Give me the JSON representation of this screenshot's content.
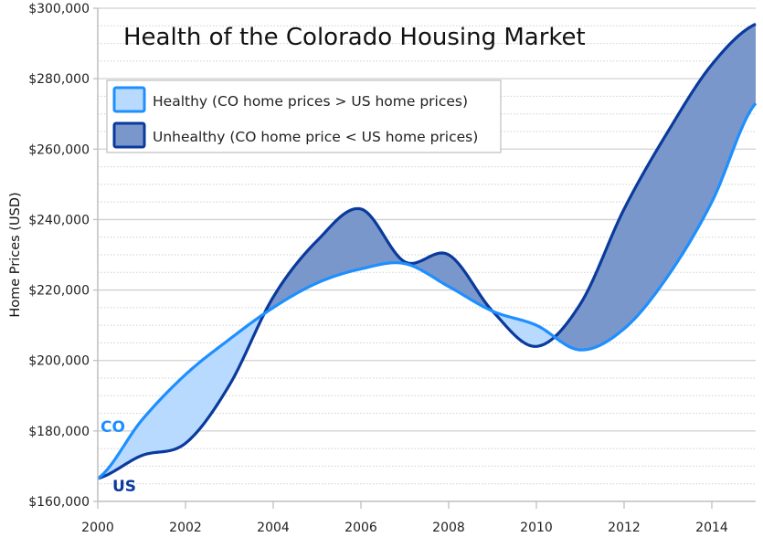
{
  "chart_data": {
    "type": "area",
    "title": "Health of the Colorado Housing Market",
    "xlabel": "",
    "ylabel": "Home Prices (USD)",
    "x": [
      2000,
      2001,
      2002,
      2003,
      2004,
      2005,
      2006,
      2007,
      2008,
      2009,
      2010,
      2011,
      2012,
      2013,
      2014,
      2015
    ],
    "xlim": [
      2000,
      2015
    ],
    "ylim": [
      160000,
      300000
    ],
    "x_ticks": [
      2000,
      2002,
      2004,
      2006,
      2008,
      2010,
      2012,
      2014
    ],
    "x_tick_labels": [
      "2000",
      "2002",
      "2004",
      "2006",
      "2008",
      "2010",
      "2012",
      "2014"
    ],
    "y_ticks": [
      160000,
      180000,
      200000,
      220000,
      240000,
      260000,
      280000,
      300000
    ],
    "y_tick_labels": [
      "$160,000",
      "$180,000",
      "$200,000",
      "$220,000",
      "$240,000",
      "$260,000",
      "$280,000",
      "$300,000"
    ],
    "grid": {
      "major": true,
      "minor_dotted": true,
      "minor_step": 5000
    },
    "series": [
      {
        "name": "CO",
        "label": "CO",
        "color": "#1E8FFF",
        "values": [
          166500,
          183000,
          196000,
          206000,
          215000,
          222000,
          226000,
          227500,
          221000,
          214000,
          210000,
          203000,
          209000,
          224000,
          245000,
          273000
        ]
      },
      {
        "name": "US",
        "label": "US",
        "color": "#0A3A9C",
        "values": [
          166500,
          173000,
          176500,
          193000,
          218000,
          234000,
          243000,
          228000,
          230000,
          214000,
          204000,
          216000,
          243000,
          265000,
          284000,
          295500
        ]
      }
    ],
    "fills": {
      "healthy": {
        "color": "#B9DAFF",
        "meaning": "CO above US"
      },
      "unhealthy": {
        "color": "#7A97CB",
        "meaning": "CO below US"
      }
    },
    "legend": {
      "position": "top-left",
      "entries": [
        {
          "label": "Healthy (CO home prices > US home prices)",
          "fill": "#B9DAFF",
          "stroke": "#1E8FFF"
        },
        {
          "label": "Unhealthy (CO home price < US home prices)",
          "fill": "#7A97CB",
          "stroke": "#0A3A9C"
        }
      ]
    }
  }
}
